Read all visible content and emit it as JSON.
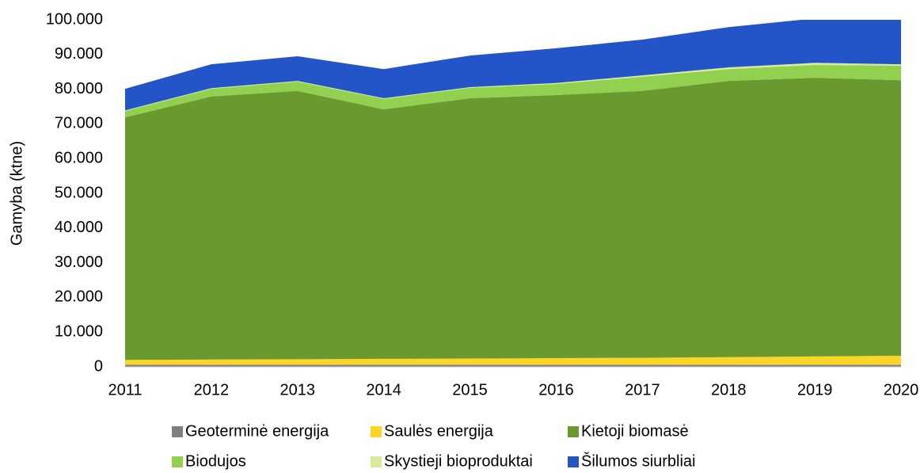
{
  "chart_data": {
    "type": "stacked_area",
    "y_label": "Gamyba (ktne)",
    "categories": [
      "2011",
      "2012",
      "2013",
      "2014",
      "2015",
      "2016",
      "2017",
      "2018",
      "2019",
      "2020"
    ],
    "series": [
      {
        "name": "Geoterminė energija",
        "color": "#7f7f7f",
        "values": [
          600,
          600,
          600,
          600,
          600,
          600,
          600,
          600,
          600,
          600
        ]
      },
      {
        "name": "Saulės energija",
        "color": "#fcd526",
        "values": [
          1400,
          1500,
          1600,
          1700,
          1800,
          1900,
          2000,
          2200,
          2400,
          2600
        ]
      },
      {
        "name": "Kietoji biomasė",
        "color": "#6a992f",
        "values": [
          69900,
          75800,
          77300,
          71900,
          75000,
          75800,
          76900,
          79600,
          80300,
          79400
        ]
      },
      {
        "name": "Biodujos",
        "color": "#92d050",
        "values": [
          1800,
          2200,
          2700,
          3000,
          3000,
          3200,
          4100,
          3400,
          3700,
          4200
        ]
      },
      {
        "name": "Skystieji bioproduktai",
        "color": "#d8eb9c",
        "values": [
          200,
          200,
          200,
          200,
          200,
          300,
          400,
          500,
          600,
          400
        ]
      },
      {
        "name": "Šilumos siurbliai",
        "color": "#2354c8",
        "values": [
          6200,
          6900,
          7100,
          8400,
          9100,
          10000,
          10300,
          11600,
          12800,
          13800
        ]
      }
    ],
    "ylim": [
      0,
      100000
    ],
    "yticks": [
      0,
      {
        "value": 10000,
        "label": "10.000"
      },
      {
        "value": 20000,
        "label": "20.000"
      },
      {
        "value": 30000,
        "label": "30.000"
      },
      {
        "value": 40000,
        "label": "40.000"
      },
      {
        "value": 50000,
        "label": "50.000"
      },
      {
        "value": 60000,
        "label": "60.000"
      },
      {
        "value": 70000,
        "label": "70.000"
      },
      {
        "value": 80000,
        "label": "80.000"
      },
      {
        "value": 90000,
        "label": "90.000"
      },
      {
        "value": 100000,
        "label": "100.000"
      }
    ],
    "grid": false,
    "legend": "bottom"
  }
}
